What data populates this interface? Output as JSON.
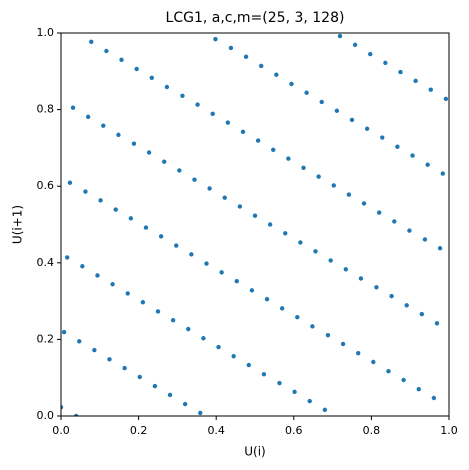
{
  "chart_data": {
    "type": "scatter",
    "title": "LCG1, a,c,m=(25, 3, 128)",
    "x_label": "U(i)",
    "y_label": "U(i+1)",
    "color": "#1f77b4",
    "xlim": [
      0,
      1
    ],
    "ylim": [
      0,
      1
    ],
    "xticks": [
      {
        "value": 0,
        "label": "0.0"
      },
      0.2,
      0.4,
      0.6,
      0.8,
      {
        "value": 1,
        "label": "1.0"
      }
    ],
    "yticks": [
      {
        "value": 0,
        "label": "0.0"
      },
      0.2,
      0.4,
      0.6,
      0.8,
      {
        "value": 1,
        "label": "1.0"
      }
    ],
    "grid": false,
    "x": [
      0,
      0.008,
      0.016,
      0.023,
      0.031,
      0.039,
      0.047,
      0.055,
      0.063,
      0.07,
      0.078,
      0.086,
      0.094,
      0.102,
      0.109,
      0.117,
      0.125,
      0.133,
      0.141,
      0.148,
      0.156,
      0.164,
      0.172,
      0.18,
      0.188,
      0.195,
      0.203,
      0.211,
      0.219,
      0.227,
      0.234,
      0.242,
      0.25,
      0.258,
      0.266,
      0.273,
      0.281,
      0.289,
      0.297,
      0.305,
      0.313,
      0.32,
      0.328,
      0.336,
      0.344,
      0.352,
      0.359,
      0.367,
      0.375,
      0.383,
      0.391,
      0.398,
      0.406,
      0.414,
      0.422,
      0.43,
      0.438,
      0.445,
      0.453,
      0.461,
      0.469,
      0.477,
      0.484,
      0.492,
      0.5,
      0.508,
      0.516,
      0.523,
      0.531,
      0.539,
      0.547,
      0.555,
      0.563,
      0.57,
      0.578,
      0.586,
      0.594,
      0.602,
      0.609,
      0.617,
      0.625,
      0.633,
      0.641,
      0.648,
      0.656,
      0.664,
      0.672,
      0.68,
      0.688,
      0.695,
      0.703,
      0.711,
      0.719,
      0.727,
      0.734,
      0.742,
      0.75,
      0.758,
      0.766,
      0.773,
      0.781,
      0.789,
      0.797,
      0.805,
      0.813,
      0.82,
      0.828,
      0.836,
      0.844,
      0.852,
      0.859,
      0.867,
      0.875,
      0.883,
      0.891,
      0.898,
      0.906,
      0.914,
      0.922,
      0.93,
      0.938,
      0.945,
      0.953,
      0.961,
      0.969,
      0.977,
      0.984,
      0.992
    ],
    "values": [
      0.023,
      0.219,
      0.414,
      0.609,
      0.805,
      0,
      0.195,
      0.391,
      0.586,
      0.781,
      0.977,
      0.172,
      0.367,
      0.563,
      0.758,
      0.953,
      0.148,
      0.344,
      0.539,
      0.734,
      0.93,
      0.125,
      0.32,
      0.516,
      0.711,
      0.906,
      0.102,
      0.297,
      0.492,
      0.688,
      0.883,
      0.078,
      0.273,
      0.469,
      0.664,
      0.859,
      0.055,
      0.25,
      0.445,
      0.641,
      0.836,
      0.031,
      0.227,
      0.422,
      0.617,
      0.813,
      0.008,
      0.203,
      0.398,
      0.594,
      0.789,
      0.984,
      0.18,
      0.375,
      0.57,
      0.766,
      0.961,
      0.156,
      0.352,
      0.547,
      0.742,
      0.938,
      0.133,
      0.328,
      0.523,
      0.719,
      0.914,
      0.109,
      0.305,
      0.5,
      0.695,
      0.891,
      0.086,
      0.281,
      0.477,
      0.672,
      0.867,
      0.063,
      0.258,
      0.453,
      0.648,
      0.844,
      0.039,
      0.234,
      0.43,
      0.625,
      0.82,
      0.016,
      0.211,
      0.406,
      0.602,
      0.797,
      0.992,
      0.188,
      0.383,
      0.578,
      0.773,
      0.969,
      0.164,
      0.359,
      0.555,
      0.75,
      0.945,
      0.141,
      0.336,
      0.531,
      0.727,
      0.922,
      0.117,
      0.313,
      0.508,
      0.703,
      0.898,
      0.094,
      0.289,
      0.484,
      0.68,
      0.875,
      0.07,
      0.266,
      0.461,
      0.656,
      0.852,
      0.047,
      0.242,
      0.438,
      0.633,
      0.828
    ]
  }
}
